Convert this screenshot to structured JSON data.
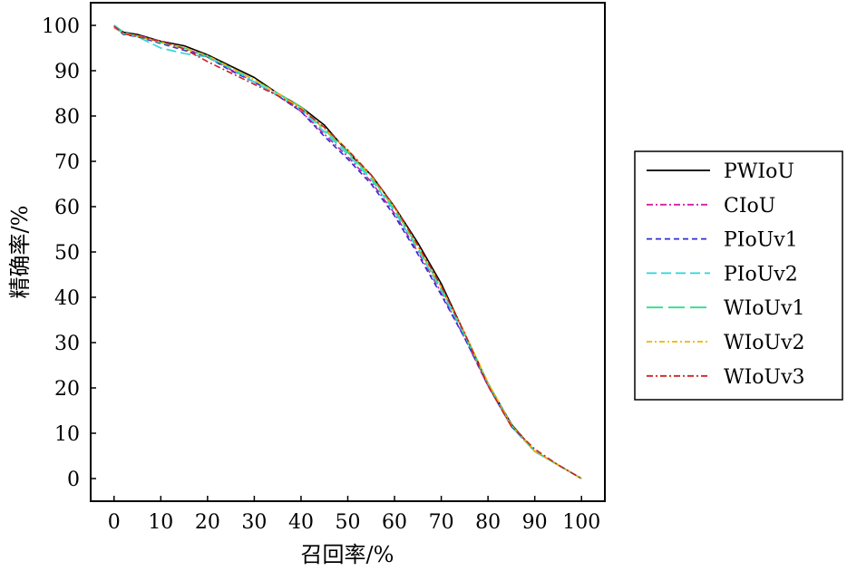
{
  "chart_data": {
    "type": "line",
    "xlabel": "召回率/%",
    "ylabel": "精确率/%",
    "xlim": [
      -5,
      105
    ],
    "ylim": [
      -5,
      105
    ],
    "xticks": [
      "0",
      "10",
      "20",
      "30",
      "40",
      "50",
      "60",
      "70",
      "80",
      "90",
      "100"
    ],
    "yticks": [
      "0",
      "10",
      "20",
      "30",
      "40",
      "50",
      "60",
      "70",
      "80",
      "90",
      "100"
    ],
    "grid": false,
    "legend_position": "right",
    "series": [
      {
        "name": "PWIoU",
        "color": "#000000",
        "dash": "",
        "x": [
          0,
          2,
          5,
          10,
          15,
          20,
          25,
          30,
          35,
          40,
          45,
          50,
          55,
          60,
          65,
          70,
          75,
          80,
          85,
          90,
          95,
          100
        ],
        "y": [
          100,
          98.5,
          98,
          96.5,
          95.5,
          93.5,
          91,
          88.5,
          85,
          82,
          78,
          72,
          67,
          60,
          52,
          43,
          32,
          21,
          12,
          6,
          3,
          0
        ]
      },
      {
        "name": "CIoU",
        "color": "#d11fa8",
        "dash": "7,3,2,3",
        "x": [
          0,
          2,
          5,
          10,
          15,
          20,
          25,
          30,
          35,
          40,
          45,
          50,
          55,
          60,
          65,
          70,
          75,
          80,
          85,
          90,
          95,
          100
        ],
        "y": [
          99.5,
          98.3,
          97.8,
          96.5,
          95,
          93,
          90.2,
          87.5,
          84.5,
          81,
          76,
          71,
          65.5,
          58.5,
          50,
          41,
          31,
          20.5,
          11.5,
          6,
          3,
          0
        ]
      },
      {
        "name": "PIoUv1",
        "color": "#2f2fd6",
        "dash": "6,4",
        "x": [
          0,
          2,
          5,
          10,
          15,
          20,
          25,
          30,
          35,
          40,
          45,
          50,
          55,
          60,
          65,
          70,
          75,
          80,
          85,
          90,
          95,
          100
        ],
        "y": [
          99.8,
          98,
          97.5,
          96,
          94.5,
          93,
          90,
          87.5,
          84.5,
          81,
          75.5,
          70.5,
          65,
          58,
          49.5,
          40.5,
          31,
          20.5,
          11.5,
          6,
          3,
          0
        ]
      },
      {
        "name": "PIoUv2",
        "color": "#29d6de",
        "dash": "11,5",
        "x": [
          0,
          2,
          5,
          10,
          15,
          20,
          25,
          30,
          35,
          40,
          45,
          50,
          55,
          60,
          65,
          70,
          75,
          80,
          85,
          90,
          95,
          100
        ],
        "y": [
          100,
          98.5,
          97.5,
          95,
          93.8,
          93,
          90.5,
          87.5,
          84.5,
          81.5,
          76.5,
          71.5,
          66,
          59,
          50.5,
          41.5,
          31.5,
          21,
          11.5,
          6,
          3,
          0
        ]
      },
      {
        "name": "WIoUv1",
        "color": "#2ae08a",
        "dash": "18,6",
        "x": [
          0,
          2,
          5,
          10,
          15,
          20,
          25,
          30,
          35,
          40,
          45,
          50,
          55,
          60,
          65,
          70,
          75,
          80,
          85,
          90,
          95,
          100
        ],
        "y": [
          99.7,
          98.2,
          97.6,
          96.2,
          95,
          93.2,
          90.6,
          88,
          85,
          82,
          77,
          72,
          66.5,
          59.5,
          51,
          42,
          32,
          21,
          11.8,
          6,
          3,
          0
        ]
      },
      {
        "name": "WIoUv2",
        "color": "#f0b400",
        "dash": "6,3,2,3",
        "x": [
          0,
          2,
          5,
          10,
          15,
          20,
          25,
          30,
          35,
          40,
          45,
          50,
          55,
          60,
          65,
          70,
          75,
          80,
          85,
          90,
          95,
          100
        ],
        "y": [
          99.6,
          98.3,
          97.7,
          96.3,
          95.1,
          93.3,
          90.7,
          88,
          85,
          81.8,
          77.2,
          72.5,
          66.8,
          59.8,
          51.2,
          42.2,
          32.2,
          21.2,
          11.8,
          6,
          3,
          0
        ]
      },
      {
        "name": "WIoUv3",
        "color": "#cc2222",
        "dash": "7,3,2,3",
        "x": [
          0,
          2,
          5,
          10,
          15,
          20,
          25,
          30,
          35,
          40,
          45,
          50,
          55,
          60,
          65,
          70,
          75,
          80,
          85,
          90,
          95,
          100
        ],
        "y": [
          99.8,
          98.2,
          97.5,
          96.5,
          94.8,
          92,
          89.5,
          87,
          84.5,
          81.5,
          77.5,
          72.5,
          67,
          60,
          51.5,
          42.5,
          32,
          20.5,
          11.5,
          6.5,
          3,
          0
        ]
      }
    ]
  }
}
